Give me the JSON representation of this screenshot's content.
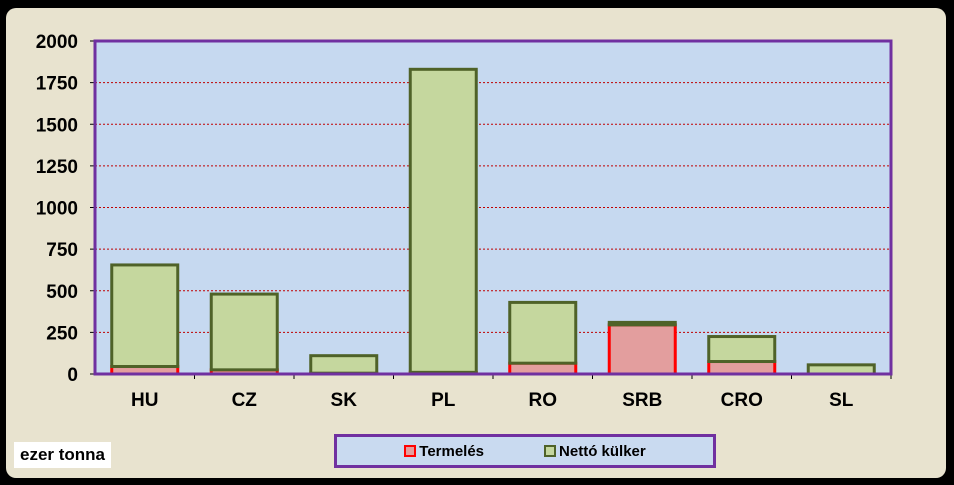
{
  "chart_data": {
    "type": "bar",
    "stacked": true,
    "categories": [
      "HU",
      "CZ",
      "SK",
      "PL",
      "RO",
      "SRB",
      "CRO",
      "SL"
    ],
    "series": [
      {
        "name": "Termelés",
        "values": [
          45,
          25,
          5,
          10,
          65,
          295,
          75,
          0
        ],
        "fill": "#e39e9e",
        "stroke": "#ff0000"
      },
      {
        "name": "Nettó külker",
        "values": [
          610,
          455,
          105,
          1820,
          365,
          15,
          150,
          55
        ],
        "fill": "#c5d79e",
        "stroke": "#4f6228"
      }
    ],
    "ylim": [
      0,
      2000
    ],
    "yticks": [
      0,
      250,
      500,
      750,
      1000,
      1250,
      1500,
      1750,
      2000
    ],
    "grid": true,
    "unit_label": "ezer tonna",
    "legend_position": "bottom",
    "colors": {
      "plot_background": "#c6d9f0",
      "plot_border": "#7030a0",
      "gridline": "#c00000",
      "outer_background": "#e8e3cf"
    }
  }
}
